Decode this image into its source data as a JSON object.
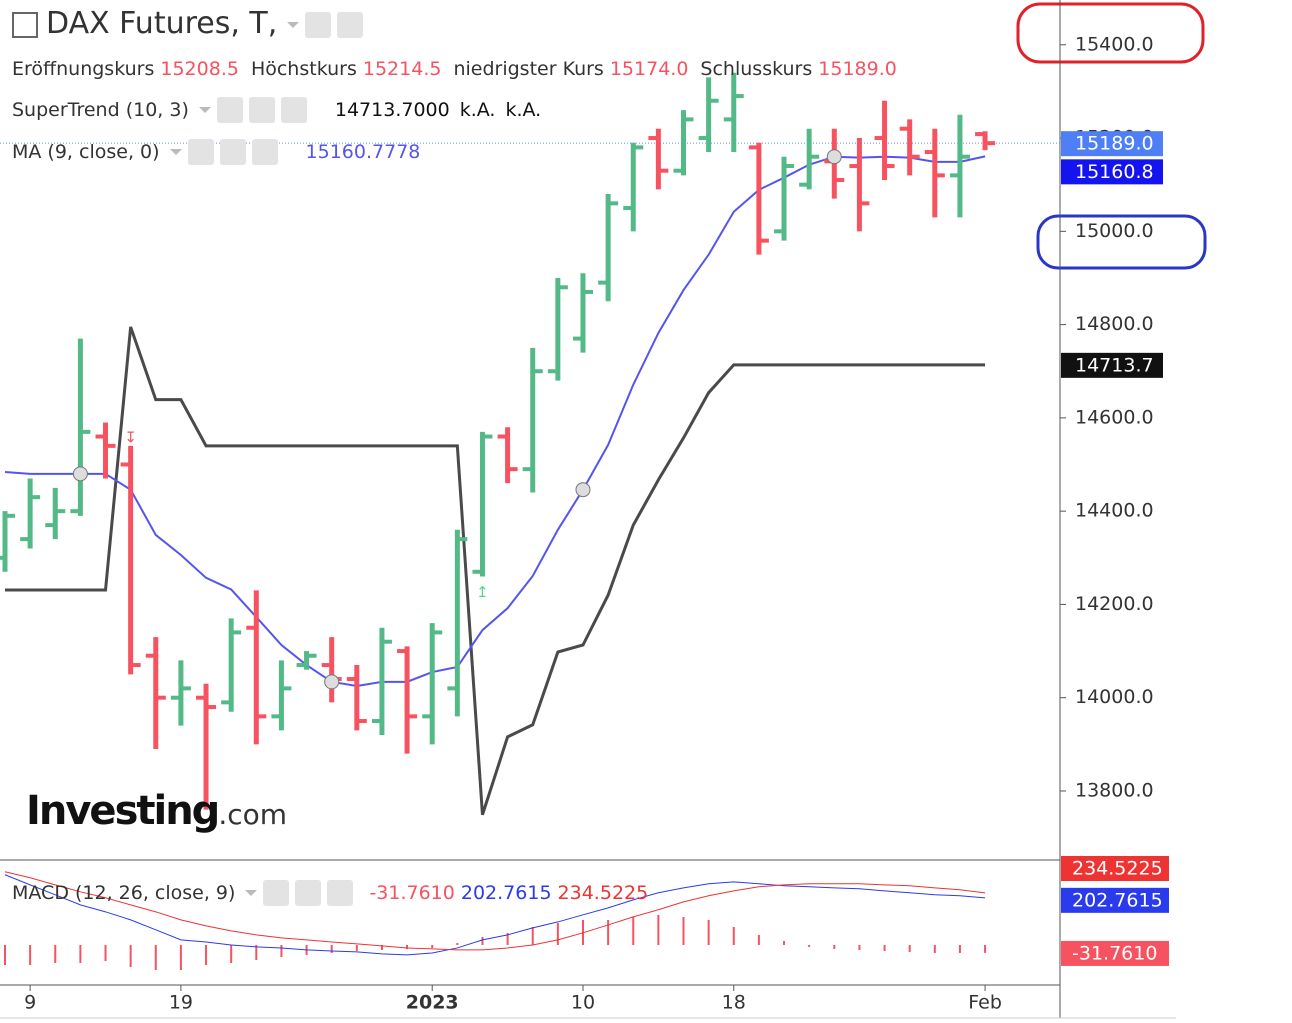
{
  "chart_data": [
    {
      "type": "ohlc",
      "title": "DAX Futures, T,",
      "ohlc_labels": [
        "Eröffnungskurs",
        "Höchstkurs",
        "niedrigster Kurs",
        "Schlusskurs"
      ],
      "ohlc_value_labels": [
        "15208.5",
        "15214.5",
        "15174.0",
        "15189.0"
      ],
      "categories": [
        null,
        "9",
        null,
        null,
        null,
        null,
        null,
        "19",
        null,
        null,
        null,
        null,
        null,
        null,
        null,
        null,
        null,
        "2023",
        null,
        null,
        null,
        null,
        null,
        "10",
        null,
        null,
        null,
        null,
        null,
        "18",
        null,
        null,
        null,
        null,
        null,
        null,
        null,
        null,
        null,
        "Feb"
      ],
      "open": [
        14300,
        14340,
        14370,
        14400,
        14560,
        14500,
        14090,
        14000,
        14000,
        13990,
        14150,
        13960,
        14070,
        14070,
        14040,
        13950,
        14100,
        13960,
        14020,
        14270,
        14560,
        14490,
        14700,
        14770,
        14890,
        15050,
        15200,
        15130,
        15200,
        15240,
        15180,
        15000,
        15100,
        15150,
        15140,
        15200,
        15220,
        15170,
        15120,
        15208.5
      ],
      "high": [
        14400,
        14470,
        14450,
        14770,
        14590,
        14540,
        14130,
        14080,
        14030,
        14170,
        14230,
        14080,
        14100,
        14130,
        14070,
        14150,
        14110,
        14160,
        14360,
        14570,
        14580,
        14750,
        14900,
        14910,
        15080,
        15190,
        15220,
        15260,
        15330,
        15340,
        15190,
        15160,
        15220,
        15220,
        15200,
        15280,
        15240,
        15220,
        15250,
        15214.5
      ],
      "low": [
        14270,
        14320,
        14340,
        14390,
        14470,
        14050,
        13890,
        13940,
        13760,
        13970,
        13900,
        13930,
        14060,
        13990,
        13930,
        13920,
        13880,
        13900,
        13960,
        14260,
        14460,
        14440,
        14680,
        14740,
        14850,
        15000,
        15090,
        15120,
        15170,
        15170,
        14950,
        14980,
        15090,
        15070,
        15000,
        15110,
        15120,
        15030,
        15030,
        15174
      ],
      "close": [
        14390,
        14430,
        14400,
        14570,
        14540,
        14070,
        14000,
        14020,
        13980,
        14140,
        13960,
        14020,
        14090,
        14040,
        13950,
        14120,
        13960,
        14140,
        14340,
        14560,
        14490,
        14700,
        14880,
        14870,
        15060,
        15180,
        15130,
        15240,
        15280,
        15290,
        14980,
        15140,
        15160,
        15110,
        15060,
        15140,
        15160,
        15120,
        15160,
        15189
      ],
      "up_color": "#53b987",
      "down_color": "#f7525f",
      "ylim": [
        13652,
        15496
      ],
      "yticks": [
        {
          "value": 13800,
          "label": "13800.0"
        },
        {
          "value": 14000,
          "label": "14000.0"
        },
        {
          "value": 14200,
          "label": "14200.0"
        },
        {
          "value": 14400,
          "label": "14400.0"
        },
        {
          "value": 14600,
          "label": "14600.0"
        },
        {
          "value": 14800,
          "label": "14800.0"
        },
        {
          "value": 15000,
          "label": "15000.0"
        },
        {
          "value": 15200,
          "label": "15200.0"
        },
        {
          "value": 15400,
          "label": "15400.0"
        }
      ],
      "close_badge_color": "#4f7ff7",
      "indicators": [
        {
          "name": "SuperTrend (10, 3)",
          "color": "#4a4a4a",
          "badge_color": "#111111",
          "values": [
            14231,
            14231,
            14231,
            14231,
            14231,
            14795,
            14639,
            14639,
            14540,
            14540,
            14540,
            14540,
            14540,
            14540,
            14540,
            14540,
            14540,
            14540,
            14540,
            13749,
            13916,
            13942,
            14098,
            14113,
            14220,
            14370,
            14467,
            14557,
            14654,
            14713.7,
            14713.7,
            14713.7,
            14713.7,
            14713.7,
            14713.7,
            14713.7,
            14713.7,
            14713.7,
            14713.7,
            14713.7
          ],
          "legend_values": [
            "14713.7000",
            "k.A.",
            "k.A."
          ],
          "badge": "14713.7"
        },
        {
          "name": "MA (9, close, 0)",
          "color": "#5555ee",
          "badge_color": "#1414ee",
          "values": [
            14484,
            14480,
            14480,
            14480,
            14480,
            14446,
            14349,
            14306,
            14257,
            14232,
            14173,
            14113,
            14070,
            14034,
            14025,
            14034,
            14034,
            14055,
            14066,
            14145,
            14192,
            14261,
            14360,
            14446,
            14542,
            14671,
            14782,
            14874,
            14950,
            15042,
            15089,
            15115,
            15143,
            15160,
            15158,
            15160,
            15158,
            15149,
            15149,
            15160.7778
          ],
          "legend_values": [
            "15160.7778"
          ],
          "badge": "15160.8",
          "markers": [
            3,
            13,
            23,
            33
          ]
        }
      ],
      "signals": [
        {
          "index": 5,
          "label": "↧",
          "color": "#f7525f"
        },
        {
          "index": 19,
          "label": "↥",
          "color": "#53d987"
        }
      ],
      "watermark": [
        "Investing",
        ".com"
      ]
    },
    {
      "type": "macd",
      "name": "MACD (12, 26, close, 9)",
      "ylim": [
        -350,
        430
      ],
      "histogram": {
        "color": "#f7525f",
        "ylim": [
          -160,
          332
        ],
        "last_label": "-31.7610",
        "values": [
          -80,
          -80,
          -72,
          -72,
          -64,
          -88,
          -100,
          -100,
          -80,
          -72,
          -60,
          -48,
          -40,
          -32,
          -24,
          -20,
          -16,
          -12,
          8,
          32,
          48,
          72,
          88,
          100,
          100,
          112,
          120,
          112,
          100,
          72,
          40,
          16,
          -8,
          -16,
          -20,
          -24,
          -28,
          -32,
          -32,
          -31.761
        ]
      },
      "series": [
        {
          "color": "#2a3bee",
          "last_label": "202.7615",
          "values": [
            349,
            285,
            222,
            158,
            114,
            63,
            0,
            -64,
            -77,
            -96,
            -108,
            -115,
            -127,
            -134,
            -140,
            -153,
            -159,
            -147,
            -115,
            -64,
            -32,
            12,
            50,
            95,
            139,
            190,
            235,
            266,
            292,
            304,
            292,
            279,
            273,
            266,
            260,
            247,
            235,
            222,
            216,
            202.7615
          ]
        },
        {
          "color": "#ee3333",
          "last_label": "234.5225",
          "values": [
            368,
            330,
            285,
            241,
            203,
            158,
            114,
            63,
            25,
            -7,
            -32,
            -51,
            -64,
            -77,
            -89,
            -102,
            -115,
            -121,
            -127,
            -127,
            -115,
            -96,
            -64,
            -19,
            31,
            82,
            127,
            177,
            216,
            247,
            273,
            285,
            292,
            292,
            292,
            285,
            279,
            266,
            254,
            234.5225
          ]
        }
      ]
    }
  ]
}
